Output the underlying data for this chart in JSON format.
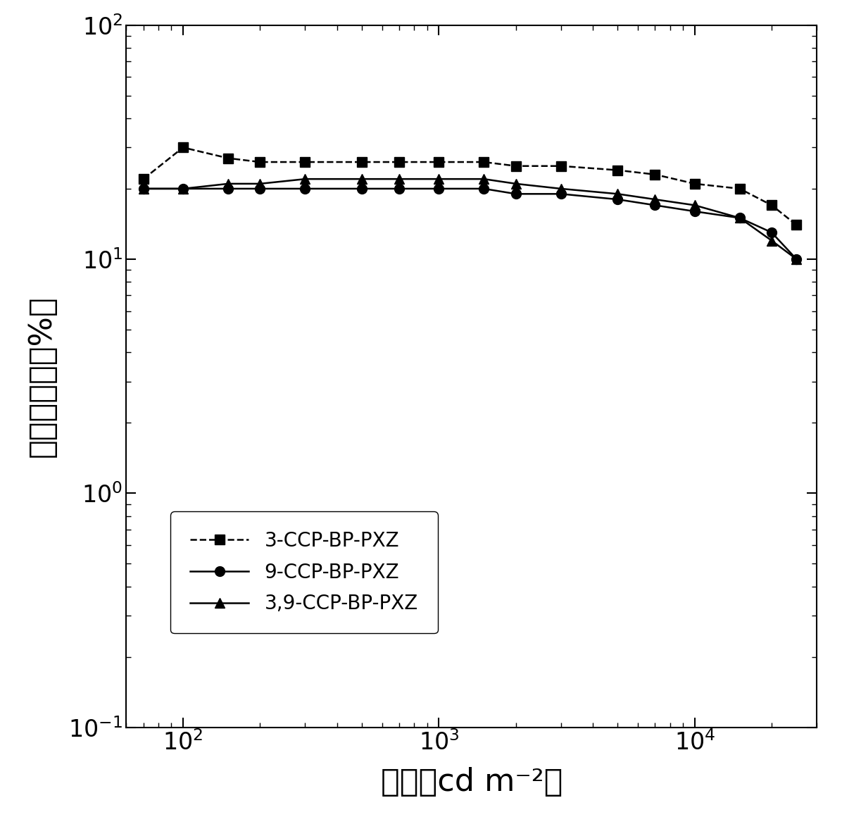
{
  "title": "",
  "xlabel": "亮度（cd m⁻²）",
  "ylabel": "外量子效率（%）",
  "xlim": [
    60,
    30000
  ],
  "ylim": [
    0.1,
    100
  ],
  "series": [
    {
      "label": "3-CCP-BP-PXZ",
      "marker": "s",
      "linestyle": "--",
      "color": "#000000",
      "x": [
        70,
        100,
        150,
        200,
        300,
        500,
        700,
        1000,
        1500,
        2000,
        3000,
        5000,
        7000,
        10000,
        15000,
        20000,
        25000
      ],
      "y": [
        22,
        30,
        27,
        26,
        26,
        26,
        26,
        26,
        26,
        25,
        25,
        24,
        23,
        21,
        20,
        17,
        14
      ]
    },
    {
      "label": "9-CCP-BP-PXZ",
      "marker": "o",
      "linestyle": "-",
      "color": "#000000",
      "x": [
        70,
        100,
        150,
        200,
        300,
        500,
        700,
        1000,
        1500,
        2000,
        3000,
        5000,
        7000,
        10000,
        15000,
        20000,
        25000
      ],
      "y": [
        20,
        20,
        20,
        20,
        20,
        20,
        20,
        20,
        20,
        19,
        19,
        18,
        17,
        16,
        15,
        13,
        10
      ]
    },
    {
      "label": "3,9-CCP-BP-PXZ",
      "marker": "^",
      "linestyle": "-",
      "color": "#000000",
      "x": [
        70,
        100,
        150,
        200,
        300,
        500,
        700,
        1000,
        1500,
        2000,
        3000,
        5000,
        7000,
        10000,
        15000,
        20000,
        25000
      ],
      "y": [
        20,
        20,
        21,
        21,
        22,
        22,
        22,
        22,
        22,
        21,
        20,
        19,
        18,
        17,
        15,
        12,
        10
      ]
    }
  ],
  "tick_fontsize": 24,
  "label_fontsize": 32,
  "legend_fontsize": 20
}
